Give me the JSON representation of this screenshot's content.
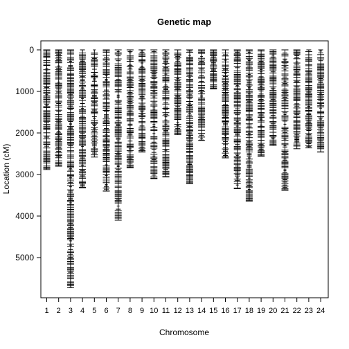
{
  "chart_data": {
    "type": "scatter",
    "marker": "horizontal-dash",
    "title": "Genetic map",
    "xlabel": "Chromosome",
    "ylabel": "Location (cM)",
    "categories": [
      "1",
      "2",
      "3",
      "4",
      "5",
      "6",
      "7",
      "8",
      "9",
      "10",
      "11",
      "12",
      "13",
      "14",
      "15",
      "16",
      "17",
      "18",
      "19",
      "20",
      "21",
      "22",
      "23",
      "24"
    ],
    "yticks": [
      0,
      1000,
      2000,
      3000,
      4000,
      5000
    ],
    "ylim": [
      0,
      5900
    ],
    "y_reversed": true,
    "grid": false,
    "legend": "none",
    "series": [
      {
        "category": "1",
        "max_cM": 2880
      },
      {
        "category": "2",
        "max_cM": 2800
      },
      {
        "category": "3",
        "max_cM": 5720
      },
      {
        "category": "4",
        "max_cM": 3320
      },
      {
        "category": "5",
        "max_cM": 2580
      },
      {
        "category": "6",
        "max_cM": 3400
      },
      {
        "category": "7",
        "max_cM": 4100
      },
      {
        "category": "8",
        "max_cM": 2840
      },
      {
        "category": "9",
        "max_cM": 2460
      },
      {
        "category": "10",
        "max_cM": 3100
      },
      {
        "category": "11",
        "max_cM": 3060
      },
      {
        "category": "12",
        "max_cM": 2040
      },
      {
        "category": "13",
        "max_cM": 3220
      },
      {
        "category": "14",
        "max_cM": 2180
      },
      {
        "category": "15",
        "max_cM": 940
      },
      {
        "category": "16",
        "max_cM": 2600
      },
      {
        "category": "17",
        "max_cM": 3340
      },
      {
        "category": "18",
        "max_cM": 3640
      },
      {
        "category": "19",
        "max_cM": 2560
      },
      {
        "category": "20",
        "max_cM": 2300
      },
      {
        "category": "21",
        "max_cM": 3380
      },
      {
        "category": "22",
        "max_cM": 2380
      },
      {
        "category": "23",
        "max_cM": 2360
      },
      {
        "category": "24",
        "max_cM": 2460
      }
    ],
    "colors": {
      "marker": "#000000",
      "axis": "#000000",
      "background": "#ffffff"
    }
  }
}
